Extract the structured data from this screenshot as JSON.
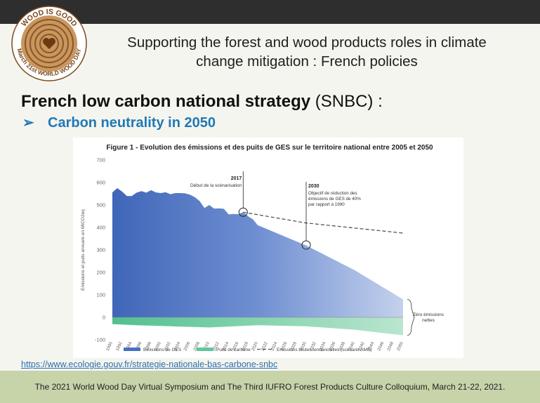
{
  "logo": {
    "text": "WOOD IS GOOD",
    "ring_text": "March 21st WORLD WOOD DAY",
    "icon": "heart-icon"
  },
  "header": {
    "line1": "Supporting the forest and wood products roles in climate",
    "line2": "change mitigation : French policies"
  },
  "section": {
    "title_bold": "French low carbon national strategy",
    "title_rest": " (SNBC) :",
    "bullet_symbol": "➢",
    "bullet_text": "Carbon neutrality in 2050"
  },
  "chart_data": {
    "type": "area",
    "title": "Figure 1 - Evolution des émissions et des puits de GES sur le territoire national entre 2005 et 2050",
    "ylabel": "Emissions et puits annuels en MtCO2eq",
    "xlabel": "",
    "ylim": [
      -100,
      700
    ],
    "yticks": [
      -100,
      0,
      100,
      200,
      300,
      400,
      500,
      600,
      700
    ],
    "x": [
      1990,
      1992,
      1994,
      1996,
      1998,
      2000,
      2002,
      2004,
      2006,
      2008,
      2010,
      2012,
      2014,
      2016,
      2018,
      2020,
      2022,
      2024,
      2026,
      2028,
      2030,
      2032,
      2034,
      2036,
      2038,
      2040,
      2042,
      2044,
      2046,
      2048,
      2050
    ],
    "series": [
      {
        "name": "Emissions de GES",
        "color": "#4a6fc0",
        "points": [
          [
            1990,
            556
          ],
          [
            1991,
            575
          ],
          [
            1992,
            560
          ],
          [
            1993,
            540
          ],
          [
            1994,
            540
          ],
          [
            1995,
            555
          ],
          [
            1996,
            562
          ],
          [
            1997,
            555
          ],
          [
            1998,
            566
          ],
          [
            1999,
            556
          ],
          [
            2000,
            553
          ],
          [
            2001,
            557
          ],
          [
            2002,
            548
          ],
          [
            2003,
            553
          ],
          [
            2004,
            553
          ],
          [
            2005,
            552
          ],
          [
            2006,
            546
          ],
          [
            2007,
            535
          ],
          [
            2008,
            518
          ],
          [
            2009,
            487
          ],
          [
            2010,
            500
          ],
          [
            2011,
            484
          ],
          [
            2012,
            485
          ],
          [
            2013,
            483
          ],
          [
            2014,
            458
          ],
          [
            2015,
            460
          ],
          [
            2016,
            459
          ],
          [
            2017,
            468
          ],
          [
            2018,
            450
          ],
          [
            2019,
            437
          ],
          [
            2020,
            410
          ],
          [
            2030,
            320
          ],
          [
            2040,
            210
          ],
          [
            2050,
            80
          ]
        ]
      },
      {
        "name": "Puits de carbone",
        "color": "#5ec79a",
        "points": [
          [
            1990,
            -30
          ],
          [
            1995,
            -35
          ],
          [
            2000,
            -38
          ],
          [
            2005,
            -42
          ],
          [
            2010,
            -45
          ],
          [
            2015,
            -40
          ],
          [
            2020,
            -35
          ],
          [
            2030,
            -40
          ],
          [
            2040,
            -55
          ],
          [
            2050,
            -80
          ]
        ]
      },
      {
        "name": "Emissions brutes tendancielles (scénario AME)",
        "color": "#666666",
        "points": [
          [
            2017,
            468
          ],
          [
            2030,
            420
          ],
          [
            2050,
            375
          ]
        ]
      }
    ],
    "annotations": [
      {
        "year": "2017",
        "text": "Début de la scénarisation",
        "x": 2017,
        "y": 468
      },
      {
        "year": "2030",
        "text": "Objectif de réduction des émissions de GES de 40% par rapport à 1990",
        "x": 2030,
        "y": 322
      },
      {
        "year": "",
        "text": "Zéro émissions nettes",
        "x": 2050,
        "y": 0
      }
    ],
    "legend_position": "bottom"
  },
  "link": "https://www.ecologie.gouv.fr/strategie-nationale-bas-carbone-snbc",
  "footer": "The 2021 World Wood Day Virtual Symposium and The Third IUFRO Forest Products Culture Colloquium, March 21-22, 2021."
}
